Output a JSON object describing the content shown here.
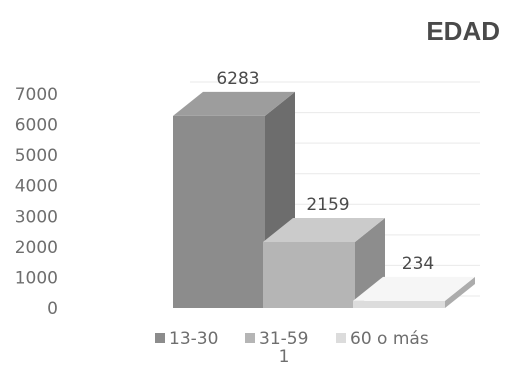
{
  "chart_data": {
    "type": "bar",
    "title": "EDAD",
    "categories": [
      "1"
    ],
    "series": [
      {
        "name": "13-30",
        "values": [
          6283
        ],
        "color": "#8c8c8c"
      },
      {
        "name": "31-59",
        "values": [
          2159
        ],
        "color": "#b5b5b5"
      },
      {
        "name": "60 o más",
        "values": [
          234
        ],
        "color": "#dcdcdc"
      }
    ],
    "data_labels": [
      "6283",
      "2159",
      "234"
    ],
    "yticks": [
      "0",
      "1000",
      "2000",
      "3000",
      "4000",
      "5000",
      "6000",
      "7000"
    ],
    "ylim": [
      0,
      7000
    ],
    "legend": "bottom",
    "three_d": true,
    "grid": true
  }
}
